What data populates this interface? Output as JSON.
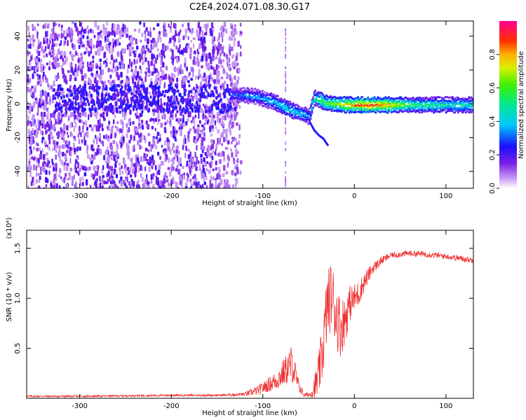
{
  "figure": {
    "title": "C2E4.2024.071.08.30.G17"
  },
  "chart_data": [
    {
      "type": "heatmap",
      "xlabel": "Height of straight line (km)",
      "ylabel": "Frequency (Hz)",
      "xlim": [
        -358,
        130
      ],
      "ylim": [
        -50,
        49
      ],
      "xticks": [
        -300,
        -200,
        -100,
        0,
        100
      ],
      "yticks": [
        -40,
        -20,
        0,
        20,
        40
      ],
      "xtick_labels": [
        "-300",
        "-200",
        "-100",
        "0",
        "100"
      ],
      "ytick_labels": [
        "-40",
        "-20",
        "0",
        "20",
        "40"
      ],
      "grid": false,
      "colorbar": {
        "label": "Normalized spectral amplitude",
        "range": [
          0,
          1
        ],
        "ticks": [
          "0.0",
          "0.2",
          "0.4",
          "0.6",
          "0.8"
        ],
        "colormap": "rainbow"
      },
      "ridge": {
        "x": [
          -130,
          -110,
          -90,
          -75,
          -60,
          -50,
          -45,
          -40,
          -30,
          -10,
          10,
          30,
          60,
          90,
          130
        ],
        "y": [
          6,
          5,
          2,
          -2,
          -5,
          -7,
          4,
          3,
          1,
          0,
          0,
          0,
          0,
          0,
          0
        ],
        "amplitude": [
          0.3,
          0.35,
          0.4,
          0.45,
          0.4,
          0.35,
          0.5,
          0.55,
          0.6,
          0.75,
          0.9,
          0.85,
          0.55,
          0.5,
          0.45
        ]
      },
      "tail": {
        "x": [
          -50,
          -45,
          -40,
          -35,
          -30
        ],
        "y": [
          -10,
          -15,
          -18,
          -20,
          -24
        ]
      }
    },
    {
      "type": "line",
      "xlabel": "Height of straight line (km)",
      "ylabel": "SNR (10 * v/v)",
      "ylabel_scale": "(x10⁴)",
      "xlim": [
        -358,
        130
      ],
      "ylim": [
        0.0,
        1.68
      ],
      "xticks": [
        -300,
        -200,
        -100,
        0,
        100
      ],
      "yticks": [
        0.5,
        1.0,
        1.5
      ],
      "xtick_labels": [
        "-300",
        "-200",
        "-100",
        "0",
        "100"
      ],
      "ytick_labels": [
        "0.5",
        "1.0",
        "1.5"
      ],
      "grid": false,
      "series": [
        {
          "color": "#f03030",
          "x": [
            -358,
            -300,
            -200,
            -150,
            -120,
            -105,
            -95,
            -85,
            -75,
            -68,
            -62,
            -55,
            -48,
            -40,
            -35,
            -30,
            -25,
            -20,
            -15,
            -10,
            -5,
            0,
            5,
            10,
            20,
            30,
            40,
            60,
            80,
            100,
            115,
            130
          ],
          "y": [
            0.02,
            0.02,
            0.03,
            0.03,
            0.04,
            0.08,
            0.13,
            0.18,
            0.28,
            0.35,
            0.15,
            0.03,
            0.04,
            0.18,
            0.45,
            0.9,
            1.05,
            0.85,
            0.7,
            0.8,
            0.95,
            1.0,
            1.05,
            1.15,
            1.3,
            1.38,
            1.43,
            1.45,
            1.44,
            1.42,
            1.4,
            1.38
          ],
          "noise": [
            0.01,
            0.01,
            0.01,
            0.01,
            0.02,
            0.05,
            0.07,
            0.1,
            0.15,
            0.2,
            0.08,
            0.02,
            0.03,
            0.2,
            0.3,
            0.35,
            0.35,
            0.35,
            0.3,
            0.25,
            0.18,
            0.15,
            0.13,
            0.1,
            0.06,
            0.04,
            0.03,
            0.03,
            0.03,
            0.03,
            0.03,
            0.03
          ]
        }
      ]
    }
  ]
}
